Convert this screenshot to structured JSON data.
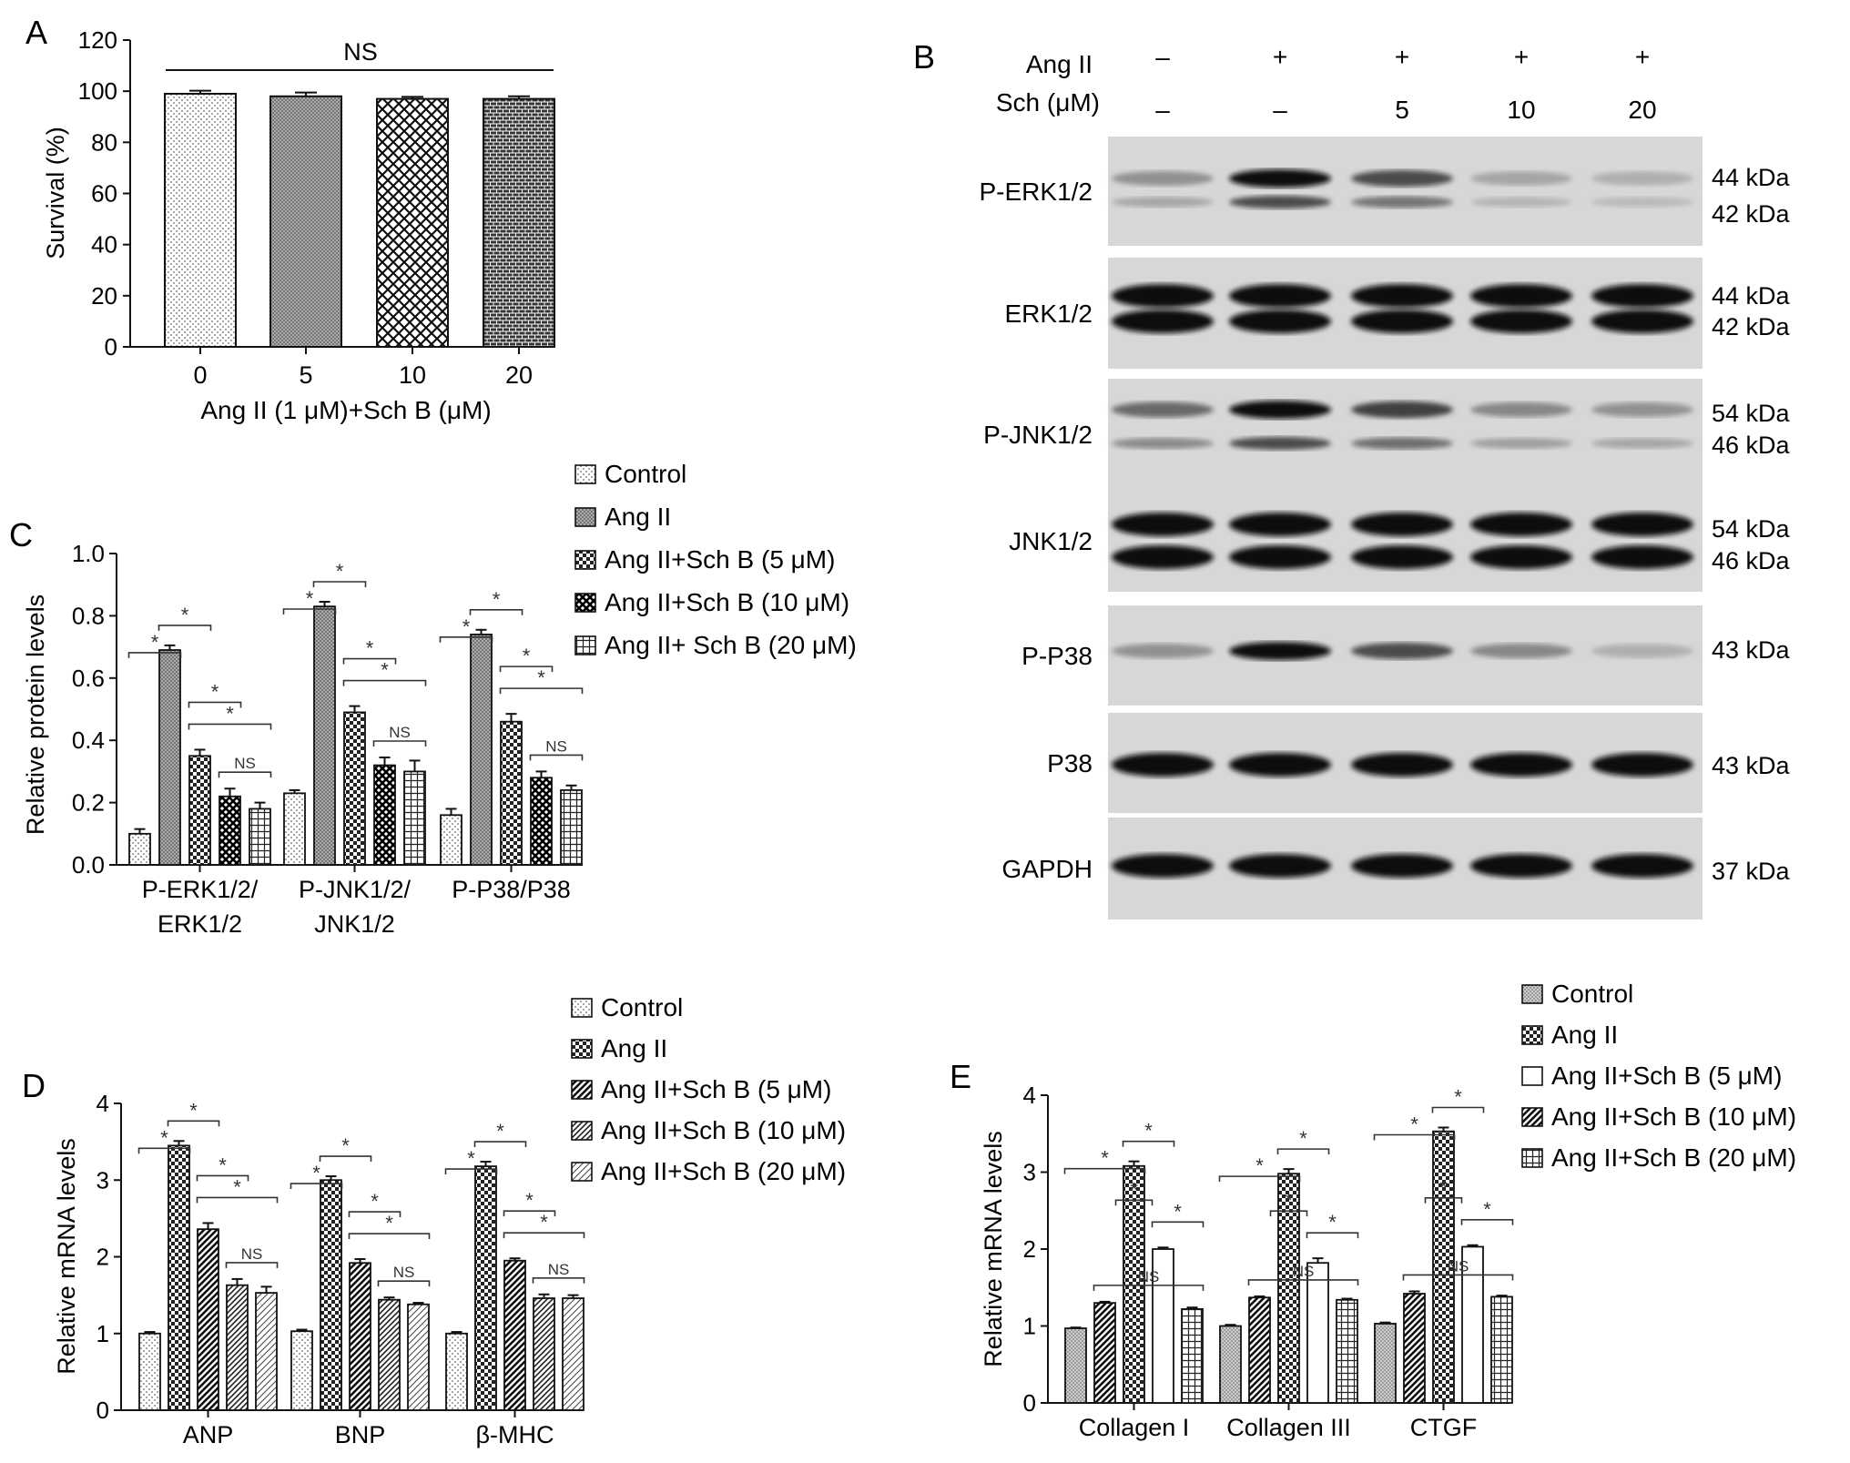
{
  "panel_letters": {
    "A": "A",
    "B": "B",
    "C": "C",
    "D": "D",
    "E": "E"
  },
  "chart_data": [
    {
      "panel": "A",
      "type": "bar",
      "categories": [
        "0",
        "5",
        "10",
        "20"
      ],
      "series": [
        {
          "values": [
            99,
            98,
            97,
            97
          ],
          "errors": [
            1.2,
            1.5,
            0.8,
            1.0
          ]
        }
      ],
      "xlabel": "Ang II (1 μM)+Sch B (μM)",
      "ylabel": "Survival (%)",
      "ylim": [
        0,
        120
      ],
      "yticks": [
        "0",
        "20",
        "40",
        "60",
        "80",
        "100",
        "120"
      ],
      "annotation": "NS",
      "patterns": [
        "dots",
        "fine-grid",
        "cross-hatch",
        "brick"
      ]
    },
    {
      "panel": "C",
      "type": "bar",
      "categories": [
        "P-ERK1/2/\nERK1/2",
        "P-JNK1/2/\nJNK1/2",
        "P-P38/P38"
      ],
      "series": [
        {
          "name": "Control",
          "values": [
            0.1,
            0.23,
            0.16
          ],
          "errors": [
            0.015,
            0.01,
            0.02
          ]
        },
        {
          "name": "Ang II",
          "values": [
            0.69,
            0.83,
            0.74
          ],
          "errors": [
            0.015,
            0.015,
            0.015
          ]
        },
        {
          "name": "Ang II+Sch B (5 μM)",
          "values": [
            0.35,
            0.49,
            0.46
          ],
          "errors": [
            0.02,
            0.02,
            0.025
          ]
        },
        {
          "name": "Ang II+Sch B (10 μM)",
          "values": [
            0.22,
            0.32,
            0.28
          ],
          "errors": [
            0.025,
            0.025,
            0.02
          ]
        },
        {
          "name": "Ang II+ Sch B (20 μM)",
          "values": [
            0.18,
            0.3,
            0.24
          ],
          "errors": [
            0.02,
            0.035,
            0.015
          ]
        }
      ],
      "ylabel": "Relative protein levels",
      "ylim": [
        0,
        1.0
      ],
      "yticks": [
        "0.0",
        "0.2",
        "0.4",
        "0.6",
        "0.8",
        "1.0"
      ],
      "legend": "top-right",
      "patterns": [
        "dots",
        "fine-grid",
        "checker",
        "cross-dark",
        "grid-lines"
      ],
      "significance": [
        "*",
        "*",
        "*",
        "*",
        "NS"
      ]
    },
    {
      "panel": "D",
      "type": "bar",
      "categories": [
        "ANP",
        "BNP",
        "β-MHC"
      ],
      "series": [
        {
          "name": "Control",
          "values": [
            1.0,
            1.03,
            1.0
          ],
          "errors": [
            0.02,
            0.02,
            0.02
          ]
        },
        {
          "name": "Ang II",
          "values": [
            3.45,
            3.0,
            3.18
          ],
          "errors": [
            0.06,
            0.05,
            0.06
          ]
        },
        {
          "name": "Ang II+Sch B (5 μM)",
          "values": [
            2.36,
            1.92,
            1.95
          ],
          "errors": [
            0.08,
            0.05,
            0.03
          ]
        },
        {
          "name": "Ang II+Sch B (10 μM)",
          "values": [
            1.63,
            1.44,
            1.46
          ],
          "errors": [
            0.08,
            0.03,
            0.05
          ]
        },
        {
          "name": "Ang II+Sch B (20 μM)",
          "values": [
            1.53,
            1.38,
            1.46
          ],
          "errors": [
            0.08,
            0.02,
            0.04
          ]
        }
      ],
      "ylabel": "Relative mRNA levels",
      "ylim": [
        0,
        4
      ],
      "yticks": [
        "0",
        "1",
        "2",
        "3",
        "4"
      ],
      "legend": "top-right",
      "patterns": [
        "dots",
        "checker",
        "diag-thick",
        "diag-thin",
        "diag-light"
      ],
      "significance": [
        "*",
        "*",
        "*",
        "*",
        "NS"
      ]
    },
    {
      "panel": "E",
      "type": "bar",
      "categories": [
        "Collagen I",
        "Collagen III",
        "CTGF"
      ],
      "series": [
        {
          "name": "Control",
          "values": [
            0.97,
            1.0,
            1.03
          ],
          "errors": [
            0.01,
            0.015,
            0.015
          ]
        },
        {
          "name": "Ang II",
          "values": [
            3.08,
            2.98,
            3.53
          ],
          "errors": [
            0.06,
            0.06,
            0.05
          ]
        },
        {
          "name": "Ang II+Sch B (5 μM)",
          "values": [
            2.0,
            1.82,
            2.03
          ],
          "errors": [
            0.02,
            0.06,
            0.02
          ]
        },
        {
          "name": "Ang II+Sch B (10 μM)",
          "values": [
            1.3,
            1.37,
            1.42
          ],
          "errors": [
            0.015,
            0.015,
            0.03
          ]
        },
        {
          "name": "Ang II+Sch B (20 μM)",
          "values": [
            1.22,
            1.34,
            1.38
          ],
          "errors": [
            0.02,
            0.015,
            0.015
          ]
        }
      ],
      "ylabel": "Relative mRNA levels",
      "ylim": [
        0,
        4
      ],
      "yticks": [
        "0",
        "1",
        "2",
        "3",
        "4"
      ],
      "legend": "top-right",
      "patterns": [
        "dots-grey",
        "checker",
        "white",
        "diag-thick",
        "grid-lines"
      ],
      "bar_order": [
        0,
        3,
        1,
        2,
        4
      ],
      "significance": [
        "*",
        "*",
        "*",
        "*",
        "NS"
      ]
    }
  ],
  "blot": {
    "header_labels": [
      "Ang II",
      "Sch (μM)"
    ],
    "ang_row": [
      "–",
      "+",
      "+",
      "+",
      "+"
    ],
    "sch_row": [
      "–",
      "–",
      "5",
      "10",
      "20"
    ],
    "rows": [
      {
        "label": "P-ERK1/2",
        "kda": [
          "44 kDa",
          "42 kDa"
        ],
        "intensity": [
          0.35,
          1.0,
          0.7,
          0.25,
          0.2
        ]
      },
      {
        "label": "ERK1/2",
        "kda": [
          "44 kDa",
          "42 kDa"
        ],
        "intensity": [
          1.0,
          1.0,
          1.0,
          1.0,
          1.0
        ]
      },
      {
        "label": "P-JNK1/2",
        "kda": [
          "54 kDa",
          "46 kDa"
        ],
        "intensity": [
          0.55,
          1.0,
          0.75,
          0.4,
          0.35
        ]
      },
      {
        "label": "JNK1/2",
        "kda": [
          "54 kDa",
          "46 kDa"
        ],
        "intensity": [
          1.0,
          1.0,
          1.0,
          1.0,
          1.0
        ]
      },
      {
        "label": "P-P38",
        "kda": [
          "43 kDa"
        ],
        "intensity": [
          0.35,
          1.0,
          0.7,
          0.4,
          0.2
        ]
      },
      {
        "label": "P38",
        "kda": [
          "43 kDa"
        ],
        "intensity": [
          1.0,
          1.0,
          1.0,
          1.0,
          1.0
        ]
      },
      {
        "label": "GAPDH",
        "kda": [
          "37 kDa"
        ],
        "intensity": [
          1.0,
          1.0,
          1.0,
          1.0,
          1.0
        ]
      }
    ]
  }
}
